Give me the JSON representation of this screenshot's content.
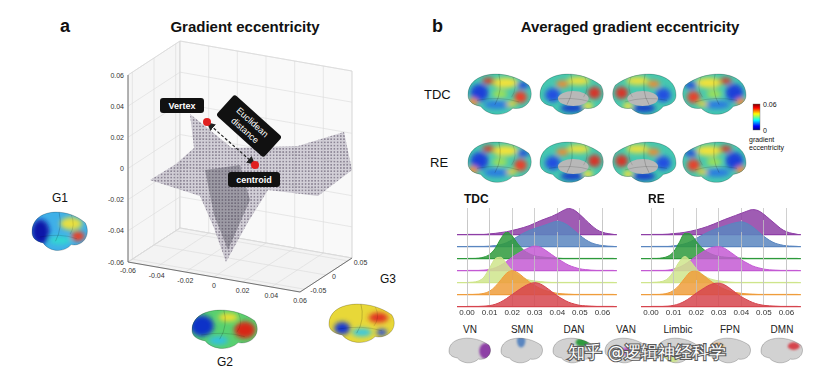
{
  "figure": {
    "a": {
      "letter": "a",
      "title": "Gradient eccentricity",
      "vertex": "Vertex",
      "distance": "Euclidean distance",
      "centroid": "centroid",
      "gradients": [
        "G1",
        "G2",
        "G3"
      ],
      "axes": {
        "vertical": {
          "lim": [
            -0.06,
            0.06
          ],
          "ticks": [
            -0.06,
            -0.04,
            -0.02,
            0,
            0.02,
            0.04,
            0.06
          ]
        },
        "front": {
          "lim": [
            -0.06,
            0.06
          ],
          "ticks": [
            -0.06,
            -0.04,
            -0.02,
            0,
            0.02,
            0.04,
            0.06
          ]
        },
        "side": {
          "lim": [
            -0.06,
            0.06
          ],
          "ticks": [
            -0.05,
            0,
            0.05
          ]
        }
      }
    },
    "b": {
      "letter": "b",
      "title": "Averaged gradient eccentricity",
      "rows": [
        "TDC",
        "RE"
      ],
      "colorbar": {
        "range": [
          0,
          0.06
        ],
        "ticks": [
          0,
          0.06
        ],
        "label": "gradient eccentricity"
      }
    },
    "watermark": "知乎 @逻辑神经科学"
  },
  "chart_data": [
    {
      "type": "ridge",
      "title": "TDC",
      "x": [
        0,
        0.0025,
        0.005,
        0.0075,
        0.01,
        0.0125,
        0.015,
        0.0175,
        0.02,
        0.0225,
        0.025,
        0.0275,
        0.03,
        0.0325,
        0.035,
        0.0375,
        0.04,
        0.0425,
        0.045,
        0.0475,
        0.05,
        0.0525,
        0.055,
        0.0575,
        0.06,
        0.0625,
        0.065
      ],
      "xlim": [
        -0.004,
        0.066
      ],
      "xticks": [
        {
          "value": 0,
          "label": "0.00"
        },
        0.01,
        0.02,
        0.03,
        0.04,
        0.05,
        0.06
      ],
      "ylim": [
        0,
        1
      ],
      "grid": true,
      "tick_labels": "x",
      "series": [
        {
          "name": "VN",
          "color": "#8e3fa6",
          "values": [
            0,
            0,
            0,
            0,
            0.02,
            0.04,
            0.07,
            0.1,
            0.15,
            0.2,
            0.26,
            0.33,
            0.42,
            0.52,
            0.6,
            0.68,
            0.78,
            0.9,
            0.98,
            0.92,
            0.75,
            0.55,
            0.35,
            0.18,
            0.08,
            0.03,
            0
          ]
        },
        {
          "name": "SMN",
          "color": "#5a86c0",
          "values": [
            0,
            0,
            0,
            0,
            0.01,
            0.03,
            0.07,
            0.14,
            0.25,
            0.38,
            0.5,
            0.6,
            0.68,
            0.75,
            0.82,
            0.9,
            0.95,
            0.9,
            0.78,
            0.6,
            0.42,
            0.26,
            0.14,
            0.07,
            0.03,
            0.01,
            0
          ]
        },
        {
          "name": "DAN",
          "color": "#2e9a3c",
          "values": [
            0,
            0,
            0.01,
            0.05,
            0.15,
            0.38,
            0.75,
            1,
            0.85,
            0.55,
            0.32,
            0.18,
            0.1,
            0.06,
            0.04,
            0.02,
            0.01,
            0,
            0,
            0,
            0,
            0,
            0,
            0,
            0,
            0,
            0
          ]
        },
        {
          "name": "VAN",
          "color": "#c45ad4",
          "values": [
            0,
            0,
            0,
            0.01,
            0.04,
            0.1,
            0.2,
            0.34,
            0.5,
            0.64,
            0.76,
            0.86,
            0.92,
            0.88,
            0.75,
            0.6,
            0.45,
            0.32,
            0.2,
            0.12,
            0.06,
            0.03,
            0.01,
            0,
            0,
            0,
            0
          ]
        },
        {
          "name": "Limbic",
          "color": "#cfe58c",
          "values": [
            0,
            0.01,
            0.05,
            0.2,
            0.55,
            0.9,
            0.95,
            0.7,
            0.45,
            0.28,
            0.16,
            0.09,
            0.05,
            0.03,
            0.01,
            0,
            0,
            0,
            0,
            0,
            0,
            0,
            0,
            0,
            0,
            0,
            0
          ]
        },
        {
          "name": "FPN",
          "color": "#ef9d3c",
          "values": [
            0,
            0,
            0.01,
            0.04,
            0.12,
            0.3,
            0.55,
            0.8,
            0.9,
            0.82,
            0.65,
            0.48,
            0.34,
            0.22,
            0.14,
            0.08,
            0.04,
            0.02,
            0.01,
            0,
            0,
            0,
            0,
            0,
            0,
            0,
            0
          ]
        },
        {
          "name": "DMN",
          "color": "#d6454e",
          "values": [
            0,
            0,
            0,
            0.01,
            0.03,
            0.08,
            0.17,
            0.3,
            0.45,
            0.6,
            0.74,
            0.85,
            0.9,
            0.85,
            0.72,
            0.56,
            0.4,
            0.27,
            0.16,
            0.09,
            0.04,
            0.02,
            0.01,
            0,
            0,
            0,
            0
          ]
        }
      ]
    },
    {
      "type": "ridge",
      "title": "RE",
      "x": [
        0,
        0.0025,
        0.005,
        0.0075,
        0.01,
        0.0125,
        0.015,
        0.0175,
        0.02,
        0.0225,
        0.025,
        0.0275,
        0.03,
        0.0325,
        0.035,
        0.0375,
        0.04,
        0.0425,
        0.045,
        0.0475,
        0.05,
        0.0525,
        0.055,
        0.0575,
        0.06,
        0.0625,
        0.065
      ],
      "xlim": [
        -0.004,
        0.066
      ],
      "xticks": [
        {
          "value": 0,
          "label": "0.00"
        },
        0.01,
        0.02,
        0.03,
        0.04,
        0.05,
        0.06
      ],
      "ylim": [
        0,
        1
      ],
      "grid": true,
      "tick_labels": "x",
      "series": [
        {
          "name": "VN",
          "color": "#8e3fa6",
          "values": [
            0,
            0,
            0,
            0.01,
            0.03,
            0.05,
            0.08,
            0.12,
            0.17,
            0.23,
            0.3,
            0.38,
            0.47,
            0.56,
            0.64,
            0.72,
            0.8,
            0.88,
            0.94,
            0.9,
            0.76,
            0.58,
            0.4,
            0.22,
            0.1,
            0.04,
            0
          ]
        },
        {
          "name": "SMN",
          "color": "#5a86c0",
          "values": [
            0,
            0,
            0,
            0,
            0.02,
            0.05,
            0.1,
            0.18,
            0.3,
            0.42,
            0.53,
            0.62,
            0.7,
            0.77,
            0.84,
            0.9,
            0.93,
            0.87,
            0.74,
            0.56,
            0.38,
            0.23,
            0.12,
            0.06,
            0.02,
            0.01,
            0
          ]
        },
        {
          "name": "DAN",
          "color": "#2e9a3c",
          "values": [
            0,
            0,
            0.02,
            0.08,
            0.25,
            0.6,
            0.95,
            0.92,
            0.65,
            0.4,
            0.24,
            0.14,
            0.08,
            0.05,
            0.03,
            0.02,
            0.01,
            0,
            0,
            0,
            0,
            0,
            0,
            0,
            0,
            0,
            0
          ]
        },
        {
          "name": "VAN",
          "color": "#c45ad4",
          "values": [
            0,
            0,
            0,
            0.01,
            0.05,
            0.12,
            0.23,
            0.38,
            0.54,
            0.68,
            0.8,
            0.88,
            0.9,
            0.84,
            0.7,
            0.55,
            0.4,
            0.28,
            0.17,
            0.1,
            0.05,
            0.02,
            0.01,
            0,
            0,
            0,
            0
          ]
        },
        {
          "name": "Limbic",
          "color": "#cfe58c",
          "values": [
            0,
            0.01,
            0.04,
            0.15,
            0.42,
            0.78,
            0.98,
            0.8,
            0.52,
            0.32,
            0.18,
            0.1,
            0.06,
            0.03,
            0.01,
            0,
            0,
            0,
            0,
            0,
            0,
            0,
            0,
            0,
            0,
            0,
            0
          ]
        },
        {
          "name": "FPN",
          "color": "#ef9d3c",
          "values": [
            0,
            0,
            0.01,
            0.05,
            0.15,
            0.35,
            0.62,
            0.85,
            0.88,
            0.76,
            0.6,
            0.44,
            0.31,
            0.2,
            0.12,
            0.07,
            0.04,
            0.02,
            0.01,
            0,
            0,
            0,
            0,
            0,
            0,
            0,
            0
          ]
        },
        {
          "name": "DMN",
          "color": "#d6454e",
          "values": [
            0,
            0,
            0,
            0.01,
            0.04,
            0.1,
            0.2,
            0.34,
            0.5,
            0.64,
            0.77,
            0.86,
            0.88,
            0.82,
            0.68,
            0.52,
            0.37,
            0.25,
            0.15,
            0.08,
            0.04,
            0.02,
            0.01,
            0,
            0,
            0,
            0
          ]
        }
      ]
    }
  ]
}
